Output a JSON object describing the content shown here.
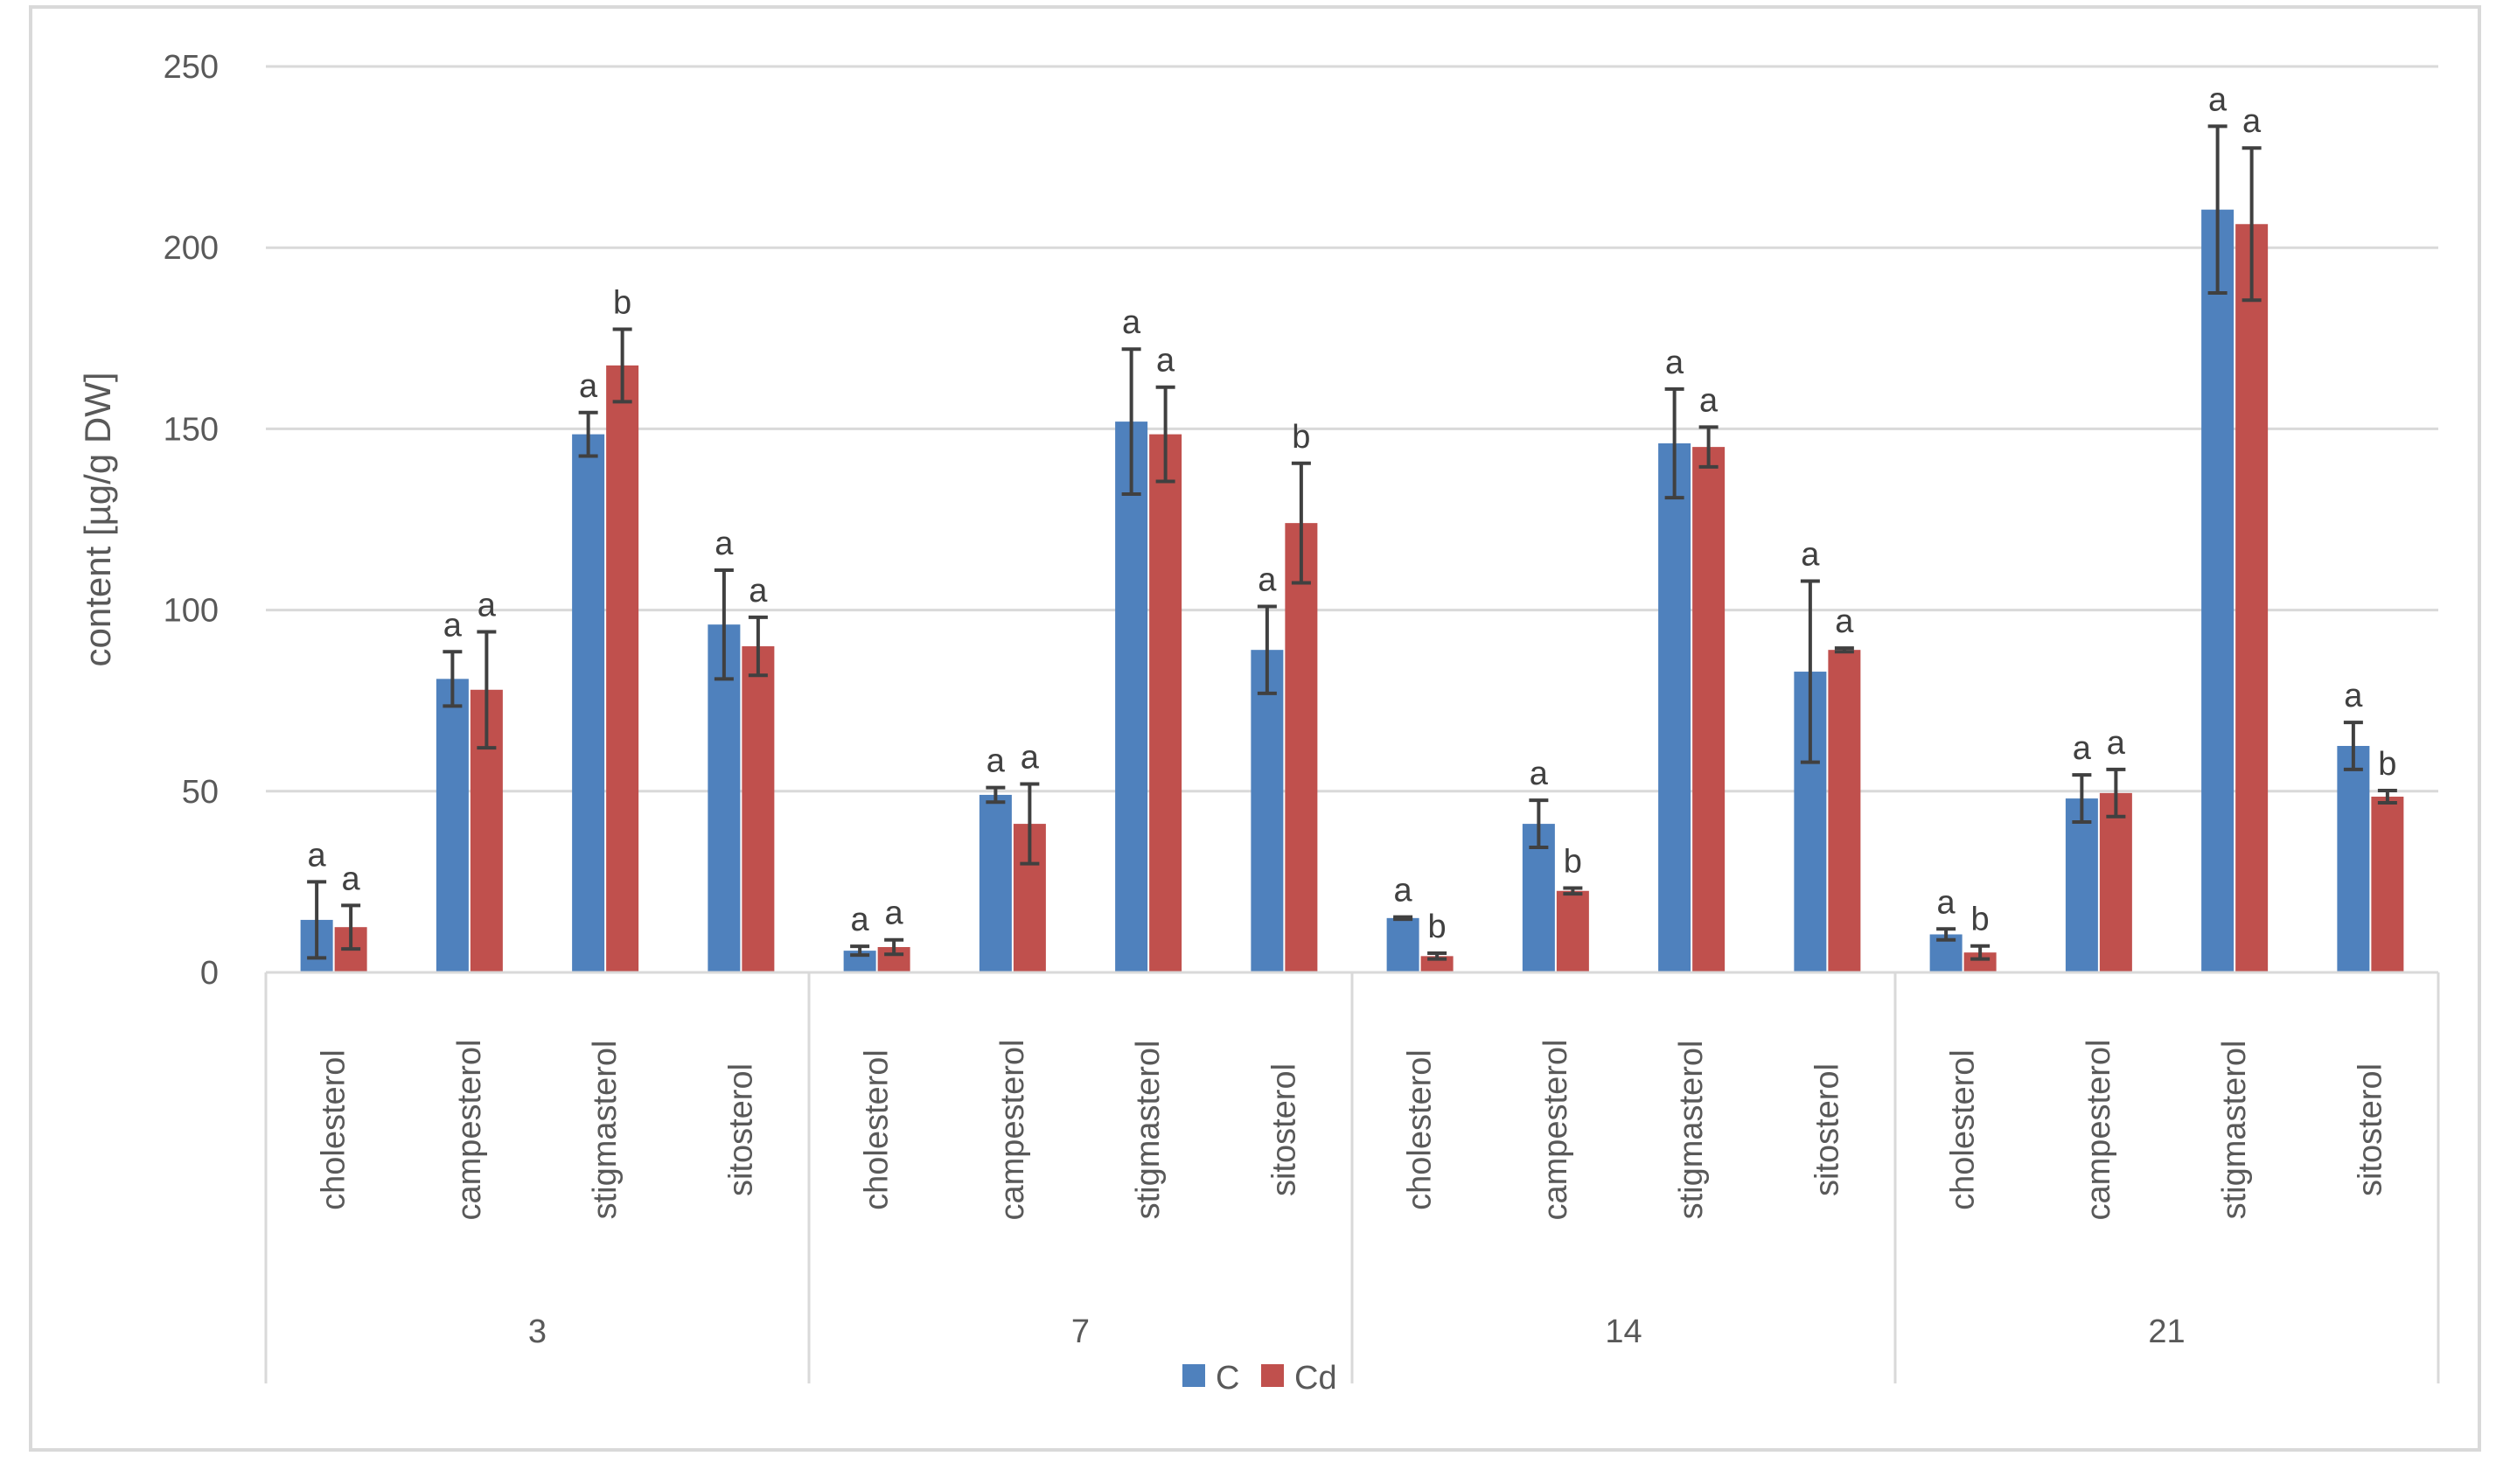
{
  "chart_data": {
    "type": "bar",
    "title": "",
    "xlabel": "",
    "ylabel": "content [µg/g DW]",
    "ylim": [
      0,
      250
    ],
    "yticks": [
      0,
      50,
      100,
      150,
      200,
      250
    ],
    "grid": true,
    "legend_position": "bottom-center",
    "groups": [
      {
        "label": "3",
        "categories": [
          "cholesterol",
          "campesterol",
          "stigmasterol",
          "sitosterol"
        ]
      },
      {
        "label": "7",
        "categories": [
          "cholesterol",
          "campesterol",
          "stigmasterol",
          "sitosterol"
        ]
      },
      {
        "label": "14",
        "categories": [
          "cholesterol",
          "campesterol",
          "stigmasterol",
          "sitosterol"
        ]
      },
      {
        "label": "21",
        "categories": [
          "cholesterol",
          "campesterol",
          "stigmasterol",
          "sitosterol"
        ]
      }
    ],
    "series": [
      {
        "name": "C",
        "color": "#4f81bd",
        "values": [
          14.5,
          81,
          148.5,
          96,
          6,
          49,
          152,
          89,
          15,
          41,
          146,
          83,
          10.5,
          48,
          210.5,
          62.5
        ],
        "errors": [
          10.5,
          7.5,
          6,
          15,
          1.2,
          2,
          20,
          12,
          0.3,
          6.5,
          15,
          25,
          1.5,
          6.5,
          23,
          6.5
        ],
        "sig": [
          "a",
          "a",
          "a",
          "a",
          "a",
          "a",
          "a",
          "a",
          "a",
          "a",
          "a",
          "a",
          "a",
          "a",
          "a",
          "a"
        ]
      },
      {
        "name": "Cd",
        "color": "#c0504d",
        "values": [
          12.5,
          78,
          167.5,
          90,
          7,
          41,
          148.5,
          124,
          4.5,
          22.5,
          145,
          89,
          5.5,
          49.5,
          206.5,
          48.5
        ],
        "errors": [
          6,
          16,
          10,
          8,
          2,
          11,
          13,
          16.5,
          0.8,
          0.8,
          5.5,
          0.5,
          1.8,
          6.5,
          21,
          1.7
        ],
        "sig": [
          "a",
          "a",
          "b",
          "a",
          "a",
          "a",
          "a",
          "b",
          "b",
          "b",
          "a",
          "a",
          "b",
          "a",
          "a",
          "b"
        ]
      }
    ]
  }
}
